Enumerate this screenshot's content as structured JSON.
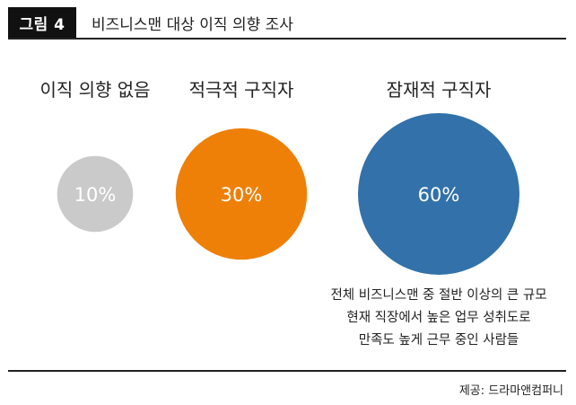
{
  "header": {
    "figure_label": "그림 4",
    "title": "비즈니스맨 대상 이직 의향 조사"
  },
  "chart_data": {
    "type": "bubble",
    "title": "비즈니스맨 대상 이직 의향 조사",
    "categories": [
      "이직 의향 없음",
      "적극적 구직자",
      "잠재적 구직자"
    ],
    "values": [
      10,
      30,
      60
    ],
    "value_labels": [
      "10%",
      "30%",
      "60%"
    ],
    "colors": [
      "#cacaca",
      "#ee8008",
      "#3271a9"
    ],
    "annotation": {
      "lines": [
        "전체 비즈니스맨 중 절반 이상의 큰 규모",
        "현재 직장에서 높은 업무 성취도로",
        "만족도 높게 근무 중인 사람들"
      ]
    }
  },
  "footer": {
    "source": "제공: 드라마앤컴퍼니"
  }
}
